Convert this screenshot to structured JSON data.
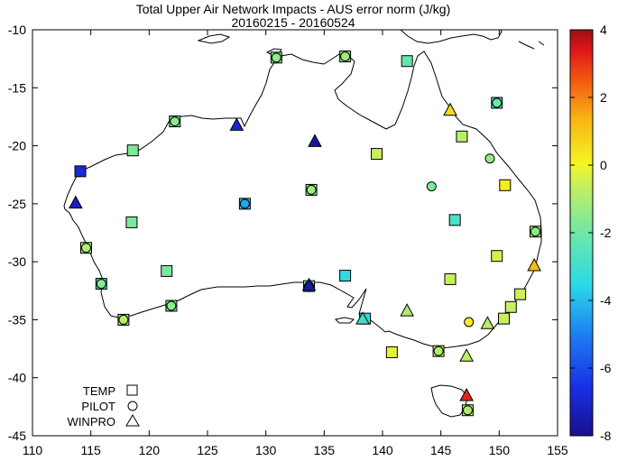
{
  "chart_data": {
    "type": "scatter",
    "title": "Total Upper Air Network Impacts - AUS error norm (J/kg)",
    "subtitle": "20160215 - 20160524",
    "xlabel": "",
    "ylabel": "",
    "xlim": [
      110,
      155
    ],
    "ylim": [
      -45,
      -10
    ],
    "x_ticks": [
      "110",
      "115",
      "120",
      "125",
      "130",
      "135",
      "140",
      "145",
      "150",
      "155"
    ],
    "y_ticks": [
      "-10",
      "-15",
      "-20",
      "-25",
      "-30",
      "-35",
      "-40",
      "-45"
    ],
    "x_tick_values": [
      110,
      115,
      120,
      125,
      130,
      135,
      140,
      145,
      150,
      155
    ],
    "y_tick_values": [
      -10,
      -15,
      -20,
      -25,
      -30,
      -35,
      -40,
      -45
    ],
    "grid": false,
    "legend_position": "bottom-left",
    "legend": [
      {
        "label": "TEMP",
        "marker": "square"
      },
      {
        "label": "PILOT",
        "marker": "circle"
      },
      {
        "label": "WINPRO",
        "marker": "triangle"
      }
    ],
    "colorbar": {
      "min": -8,
      "max": 4,
      "ticks": [
        "4",
        "2",
        "0",
        "-2",
        "-4",
        "-6",
        "-8"
      ],
      "tick_values": [
        4,
        2,
        0,
        -2,
        -4,
        -6,
        -8
      ]
    },
    "points": [
      {
        "marker": "square",
        "lon": 130.9,
        "lat": -12.4,
        "value": -1.8
      },
      {
        "marker": "circle",
        "lon": 130.9,
        "lat": -12.4,
        "value": -1.4
      },
      {
        "marker": "square",
        "lon": 136.8,
        "lat": -12.3,
        "value": -1.7
      },
      {
        "marker": "circle",
        "lon": 136.8,
        "lat": -12.3,
        "value": -1.2
      },
      {
        "marker": "square",
        "lon": 142.1,
        "lat": -12.7,
        "value": -2.2
      },
      {
        "marker": "square",
        "lon": 149.8,
        "lat": -16.3,
        "value": -3.2
      },
      {
        "marker": "circle",
        "lon": 149.8,
        "lat": -16.3,
        "value": -2.0
      },
      {
        "marker": "triangle",
        "lon": 145.8,
        "lat": -16.9,
        "value": 0.6
      },
      {
        "marker": "square",
        "lon": 146.8,
        "lat": -19.2,
        "value": -0.8
      },
      {
        "marker": "circle",
        "lon": 149.2,
        "lat": -21.1,
        "value": -1.4
      },
      {
        "marker": "square",
        "lon": 150.5,
        "lat": -23.4,
        "value": 0.2
      },
      {
        "marker": "circle",
        "lon": 144.2,
        "lat": -23.5,
        "value": -1.8
      },
      {
        "marker": "square",
        "lon": 139.5,
        "lat": -20.7,
        "value": -0.6
      },
      {
        "marker": "triangle",
        "lon": 134.2,
        "lat": -19.6,
        "value": -7.6
      },
      {
        "marker": "triangle",
        "lon": 127.5,
        "lat": -18.2,
        "value": -7.0
      },
      {
        "marker": "square",
        "lon": 122.2,
        "lat": -17.9,
        "value": -2.0
      },
      {
        "marker": "circle",
        "lon": 122.2,
        "lat": -17.9,
        "value": -1.6
      },
      {
        "marker": "square",
        "lon": 118.6,
        "lat": -20.4,
        "value": -1.8
      },
      {
        "marker": "square",
        "lon": 114.1,
        "lat": -22.2,
        "value": -6.8
      },
      {
        "marker": "triangle",
        "lon": 113.7,
        "lat": -24.9,
        "value": -7.2
      },
      {
        "marker": "square",
        "lon": 128.2,
        "lat": -25.0,
        "value": -4.0
      },
      {
        "marker": "circle",
        "lon": 128.2,
        "lat": -25.0,
        "value": -4.4
      },
      {
        "marker": "square",
        "lon": 133.9,
        "lat": -23.8,
        "value": -1.6
      },
      {
        "marker": "circle",
        "lon": 133.9,
        "lat": -23.8,
        "value": -1.2
      },
      {
        "marker": "square",
        "lon": 118.5,
        "lat": -26.6,
        "value": -1.8
      },
      {
        "marker": "square",
        "lon": 114.6,
        "lat": -28.8,
        "value": -1.4
      },
      {
        "marker": "circle",
        "lon": 114.6,
        "lat": -28.8,
        "value": -1.0
      },
      {
        "marker": "square",
        "lon": 121.5,
        "lat": -30.8,
        "value": -1.9
      },
      {
        "marker": "square",
        "lon": 115.9,
        "lat": -31.9,
        "value": -3.6
      },
      {
        "marker": "circle",
        "lon": 115.9,
        "lat": -31.9,
        "value": -1.6
      },
      {
        "marker": "square",
        "lon": 117.8,
        "lat": -35.0,
        "value": -1.7
      },
      {
        "marker": "circle",
        "lon": 117.8,
        "lat": -35.0,
        "value": -0.8
      },
      {
        "marker": "square",
        "lon": 121.9,
        "lat": -33.8,
        "value": -1.9
      },
      {
        "marker": "circle",
        "lon": 121.9,
        "lat": -33.8,
        "value": -1.5
      },
      {
        "marker": "square",
        "lon": 133.7,
        "lat": -32.1,
        "value": -1.8
      },
      {
        "marker": "circle",
        "lon": 133.7,
        "lat": -32.1,
        "value": -1.4
      },
      {
        "marker": "triangle",
        "lon": 133.7,
        "lat": -32.0,
        "value": -7.6
      },
      {
        "marker": "square",
        "lon": 136.8,
        "lat": -31.2,
        "value": -3.4
      },
      {
        "marker": "square",
        "lon": 138.5,
        "lat": -34.9,
        "value": -3.4
      },
      {
        "marker": "triangle",
        "lon": 138.3,
        "lat": -34.9,
        "value": -3.0
      },
      {
        "marker": "square",
        "lon": 146.2,
        "lat": -26.4,
        "value": -2.8
      },
      {
        "marker": "square",
        "lon": 153.1,
        "lat": -27.4,
        "value": -0.6
      },
      {
        "marker": "circle",
        "lon": 153.1,
        "lat": -27.4,
        "value": -1.6
      },
      {
        "marker": "square",
        "lon": 149.8,
        "lat": -29.5,
        "value": -0.4
      },
      {
        "marker": "triangle",
        "lon": 153.0,
        "lat": -30.3,
        "value": 1.2
      },
      {
        "marker": "square",
        "lon": 145.8,
        "lat": -31.5,
        "value": -0.6
      },
      {
        "marker": "square",
        "lon": 151.8,
        "lat": -32.8,
        "value": -0.5
      },
      {
        "marker": "square",
        "lon": 151.0,
        "lat": -33.9,
        "value": -0.6
      },
      {
        "marker": "square",
        "lon": 150.4,
        "lat": -34.9,
        "value": -0.6
      },
      {
        "marker": "triangle",
        "lon": 142.1,
        "lat": -34.2,
        "value": -1.0
      },
      {
        "marker": "circle",
        "lon": 147.4,
        "lat": -35.2,
        "value": 0.2
      },
      {
        "marker": "triangle",
        "lon": 149.0,
        "lat": -35.3,
        "value": -0.8
      },
      {
        "marker": "square",
        "lon": 140.8,
        "lat": -37.8,
        "value": -0.2
      },
      {
        "marker": "square",
        "lon": 144.8,
        "lat": -37.7,
        "value": -0.6
      },
      {
        "marker": "circle",
        "lon": 144.8,
        "lat": -37.7,
        "value": -1.0
      },
      {
        "marker": "triangle",
        "lon": 147.2,
        "lat": -38.1,
        "value": -0.8
      },
      {
        "marker": "triangle",
        "lon": 147.2,
        "lat": -41.5,
        "value": 3.2
      },
      {
        "marker": "square",
        "lon": 147.3,
        "lat": -42.8,
        "value": -0.6
      },
      {
        "marker": "circle",
        "lon": 147.3,
        "lat": -42.8,
        "value": -1.0
      }
    ]
  }
}
